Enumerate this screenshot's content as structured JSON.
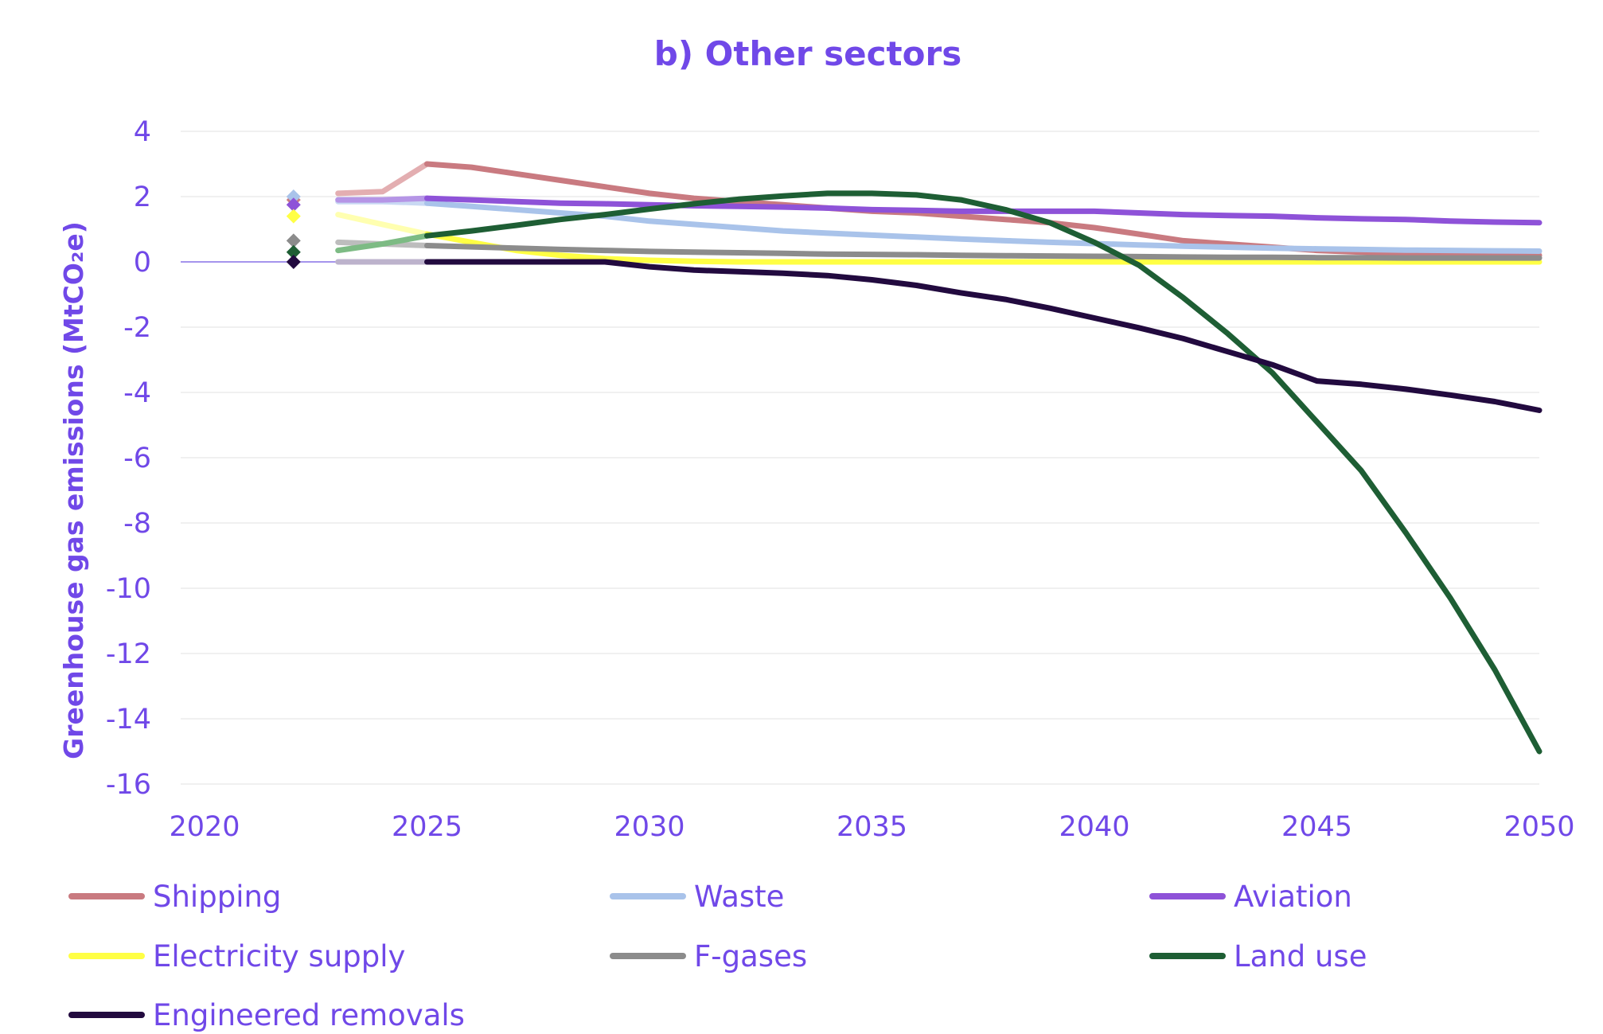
{
  "chart_data": {
    "type": "line",
    "title": "b) Other sectors",
    "ylabel": "Greenhouse gas emissions (MtCO₂e)",
    "xlabel": "",
    "xlim": [
      2020,
      2050
    ],
    "ylim": [
      -16,
      4
    ],
    "x_ticks": [
      "2020",
      "2025",
      "2030",
      "2035",
      "2040",
      "2045",
      "2050"
    ],
    "y_ticks": [
      "4",
      "2",
      "0",
      "-2",
      "-4",
      "-6",
      "-8",
      "-10",
      "-12",
      "-14",
      "-16"
    ],
    "legend_position": "bottom",
    "series": [
      {
        "name": "Shipping",
        "color": "#c97a80",
        "light_color": "#e3aeb1",
        "marker_2022": 1.9,
        "x": [
          2023,
          2024,
          2025,
          2026,
          2027,
          2028,
          2029,
          2030,
          2031,
          2032,
          2033,
          2034,
          2035,
          2036,
          2037,
          2038,
          2039,
          2040,
          2041,
          2042,
          2043,
          2044,
          2045,
          2046,
          2047,
          2048,
          2049,
          2050
        ],
        "y": [
          2.1,
          2.15,
          3.0,
          2.9,
          2.7,
          2.5,
          2.3,
          2.1,
          1.95,
          1.85,
          1.75,
          1.65,
          1.55,
          1.5,
          1.4,
          1.3,
          1.2,
          1.05,
          0.85,
          0.65,
          0.55,
          0.45,
          0.35,
          0.3,
          0.25,
          0.22,
          0.2,
          0.2
        ]
      },
      {
        "name": "Waste",
        "color": "#a9c3ea",
        "light_color": "#c9d9f3",
        "marker_2022": 2.0,
        "x": [
          2023,
          2024,
          2025,
          2026,
          2027,
          2028,
          2029,
          2030,
          2031,
          2032,
          2033,
          2034,
          2035,
          2036,
          2037,
          2038,
          2039,
          2040,
          2041,
          2042,
          2043,
          2044,
          2045,
          2046,
          2047,
          2048,
          2049,
          2050
        ],
        "y": [
          1.85,
          1.85,
          1.8,
          1.7,
          1.6,
          1.5,
          1.4,
          1.25,
          1.15,
          1.05,
          0.95,
          0.88,
          0.82,
          0.76,
          0.7,
          0.65,
          0.6,
          0.56,
          0.52,
          0.48,
          0.45,
          0.42,
          0.4,
          0.38,
          0.36,
          0.35,
          0.34,
          0.33
        ]
      },
      {
        "name": "Aviation",
        "color": "#8e52d8",
        "light_color": "#b595e6",
        "marker_2022": 1.75,
        "x": [
          2023,
          2024,
          2025,
          2026,
          2027,
          2028,
          2029,
          2030,
          2031,
          2032,
          2033,
          2034,
          2035,
          2036,
          2037,
          2038,
          2039,
          2040,
          2041,
          2042,
          2043,
          2044,
          2045,
          2046,
          2047,
          2048,
          2049,
          2050
        ],
        "y": [
          1.9,
          1.9,
          1.95,
          1.9,
          1.85,
          1.8,
          1.78,
          1.75,
          1.72,
          1.7,
          1.68,
          1.65,
          1.6,
          1.58,
          1.55,
          1.55,
          1.55,
          1.55,
          1.5,
          1.45,
          1.42,
          1.4,
          1.35,
          1.32,
          1.3,
          1.25,
          1.22,
          1.2
        ]
      },
      {
        "name": "Electricity supply",
        "color": "#ffff44",
        "light_color": "#ffffb0",
        "marker_2022": 1.4,
        "x": [
          2023,
          2024,
          2025,
          2026,
          2027,
          2028,
          2029,
          2030,
          2031,
          2032,
          2033,
          2034,
          2035,
          2036,
          2037,
          2038,
          2039,
          2040,
          2041,
          2042,
          2043,
          2044,
          2045,
          2046,
          2047,
          2048,
          2049,
          2050
        ],
        "y": [
          1.45,
          1.15,
          0.85,
          0.6,
          0.35,
          0.2,
          0.1,
          0.05,
          0.02,
          0.0,
          0.0,
          0.0,
          0.0,
          0.0,
          0.0,
          0.0,
          0.0,
          0.0,
          0.0,
          0.0,
          0.0,
          0.0,
          0.0,
          0.0,
          0.0,
          0.0,
          0.0,
          0.0
        ]
      },
      {
        "name": "F-gases",
        "color": "#8c8c8c",
        "light_color": "#bdbdbd",
        "marker_2022": 0.65,
        "x": [
          2023,
          2024,
          2025,
          2026,
          2027,
          2028,
          2029,
          2030,
          2031,
          2032,
          2033,
          2034,
          2035,
          2036,
          2037,
          2038,
          2039,
          2040,
          2041,
          2042,
          2043,
          2044,
          2045,
          2046,
          2047,
          2048,
          2049,
          2050
        ],
        "y": [
          0.6,
          0.55,
          0.5,
          0.46,
          0.42,
          0.38,
          0.35,
          0.32,
          0.3,
          0.28,
          0.26,
          0.24,
          0.23,
          0.22,
          0.2,
          0.19,
          0.18,
          0.17,
          0.16,
          0.15,
          0.14,
          0.14,
          0.13,
          0.13,
          0.12,
          0.12,
          0.12,
          0.12
        ]
      },
      {
        "name": "Land use",
        "color": "#1e5e34",
        "light_color": "#7dbb84",
        "marker_2022": 0.3,
        "x": [
          2023,
          2024,
          2025,
          2026,
          2027,
          2028,
          2029,
          2030,
          2031,
          2032,
          2033,
          2034,
          2035,
          2036,
          2037,
          2038,
          2039,
          2040,
          2041,
          2042,
          2043,
          2044,
          2045,
          2046,
          2047,
          2048,
          2049,
          2050
        ],
        "y": [
          0.35,
          0.55,
          0.8,
          0.95,
          1.12,
          1.3,
          1.45,
          1.62,
          1.78,
          1.92,
          2.02,
          2.1,
          2.1,
          2.05,
          1.9,
          1.6,
          1.2,
          0.6,
          -0.1,
          -1.1,
          -2.2,
          -3.4,
          -4.9,
          -6.4,
          -8.3,
          -10.3,
          -12.5,
          -15.0
        ]
      },
      {
        "name": "Engineered removals",
        "color": "#220a3f",
        "light_color": "#bdb3cc",
        "marker_2022": 0.0,
        "x": [
          2023,
          2024,
          2025,
          2026,
          2027,
          2028,
          2029,
          2030,
          2031,
          2032,
          2033,
          2034,
          2035,
          2036,
          2037,
          2038,
          2039,
          2040,
          2041,
          2042,
          2043,
          2044,
          2045,
          2046,
          2047,
          2048,
          2049,
          2050
        ],
        "y": [
          0.0,
          0.0,
          0.0,
          0.0,
          0.0,
          0.0,
          0.0,
          -0.15,
          -0.25,
          -0.3,
          -0.35,
          -0.42,
          -0.55,
          -0.72,
          -0.95,
          -1.15,
          -1.42,
          -1.72,
          -2.02,
          -2.35,
          -2.75,
          -3.15,
          -3.65,
          -3.75,
          -3.9,
          -4.08,
          -4.28,
          -4.55
        ]
      }
    ]
  }
}
